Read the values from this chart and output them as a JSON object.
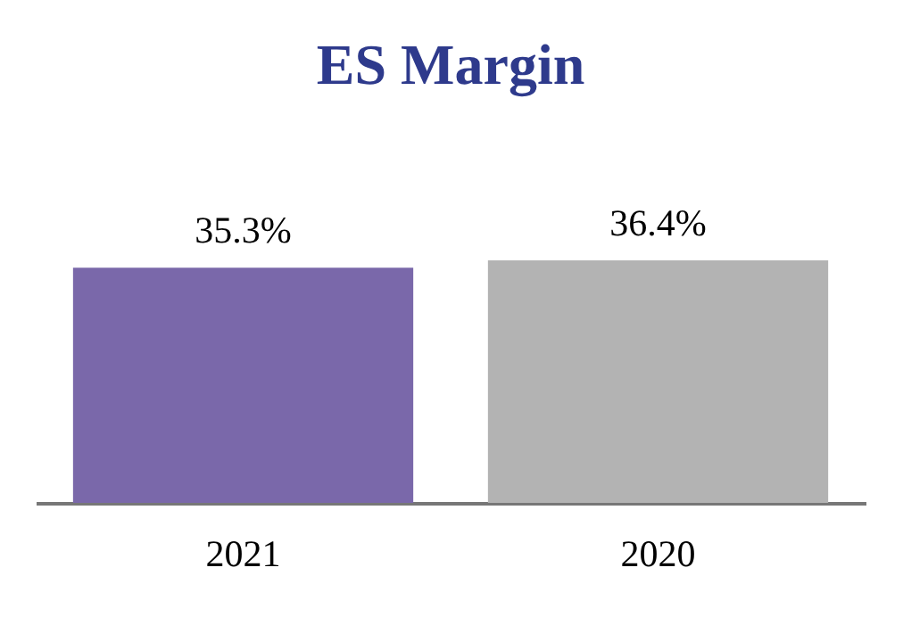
{
  "chart_data": {
    "type": "bar",
    "title": "ES Margin",
    "categories": [
      "2021",
      "2020"
    ],
    "values": [
      35.3,
      36.4
    ],
    "colors": [
      "#7a68aa",
      "#b3b3b3"
    ],
    "value_labels": [
      "35.3%",
      "36.4%"
    ],
    "grid": false
  }
}
